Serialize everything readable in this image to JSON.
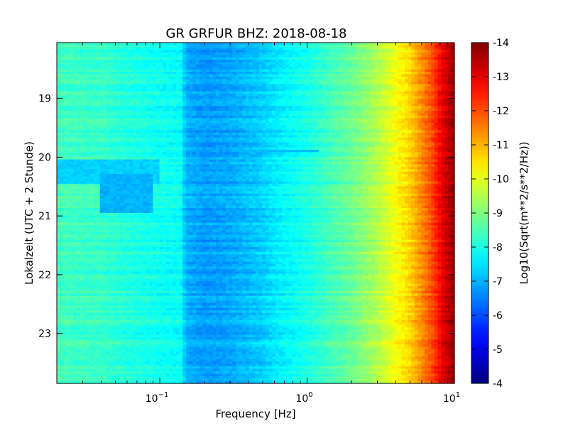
{
  "chart_data": {
    "type": "heatmap",
    "title": "GR GRFUR BHZ: 2018-08-18",
    "xlabel": "Frequency [Hz]",
    "ylabel": "Lokalzeit (UTC + 2 Stunde)",
    "x_scale": "log",
    "xlim": [
      0.02,
      10
    ],
    "x_ticks": [
      {
        "value": 0.1,
        "base": "10",
        "exp": "−1"
      },
      {
        "value": 1,
        "base": "10",
        "exp": "0"
      },
      {
        "value": 10,
        "base": "10",
        "exp": "1"
      }
    ],
    "ylim": [
      18.05,
      23.85
    ],
    "y_inverted": true,
    "y_ticks": [
      {
        "value": 19,
        "label": "19"
      },
      {
        "value": 20,
        "label": "20"
      },
      {
        "value": 21,
        "label": "21"
      },
      {
        "value": 22,
        "label": "22"
      },
      {
        "value": 23,
        "label": "23"
      }
    ],
    "colormap": "jet",
    "colorbar": {
      "label": "Log10(Sqrt(m**2/s**2/Hz))",
      "range": [
        -14,
        -4
      ],
      "ticks": [
        "-4",
        "-5",
        "-6",
        "-7",
        "-8",
        "-9",
        "-10",
        "-11",
        "-12",
        "-13",
        "-14"
      ]
    },
    "spectrum_profile": [
      {
        "freq": 0.02,
        "value": -8.4
      },
      {
        "freq": 0.04,
        "value": -8.3
      },
      {
        "freq": 0.06,
        "value": -8.1
      },
      {
        "freq": 0.1,
        "value": -7.9
      },
      {
        "freq": 0.14,
        "value": -7.8
      },
      {
        "freq": 0.15,
        "value": -7.0
      },
      {
        "freq": 0.2,
        "value": -6.8
      },
      {
        "freq": 0.3,
        "value": -6.9
      },
      {
        "freq": 0.5,
        "value": -7.3
      },
      {
        "freq": 0.7,
        "value": -7.7
      },
      {
        "freq": 1.0,
        "value": -8.0
      },
      {
        "freq": 2.0,
        "value": -8.8
      },
      {
        "freq": 3.0,
        "value": -9.5
      },
      {
        "freq": 5.0,
        "value": -10.7
      },
      {
        "freq": 7.0,
        "value": -12.0
      },
      {
        "freq": 8.5,
        "value": -13.1
      },
      {
        "freq": 10,
        "value": -13.8
      }
    ],
    "features": [
      {
        "kind": "elevated-band",
        "time_start": 20.05,
        "time_end": 20.45,
        "freq_start": 0.02,
        "freq_end": 0.1,
        "value": -7.3
      },
      {
        "kind": "elevated-band",
        "time_start": 20.3,
        "time_end": 20.95,
        "freq_start": 0.04,
        "freq_end": 0.09,
        "value": -7.0
      },
      {
        "kind": "line",
        "time": 19.9,
        "freq_start": 0.4,
        "freq_end": 1.2,
        "value": -7.1
      }
    ]
  }
}
